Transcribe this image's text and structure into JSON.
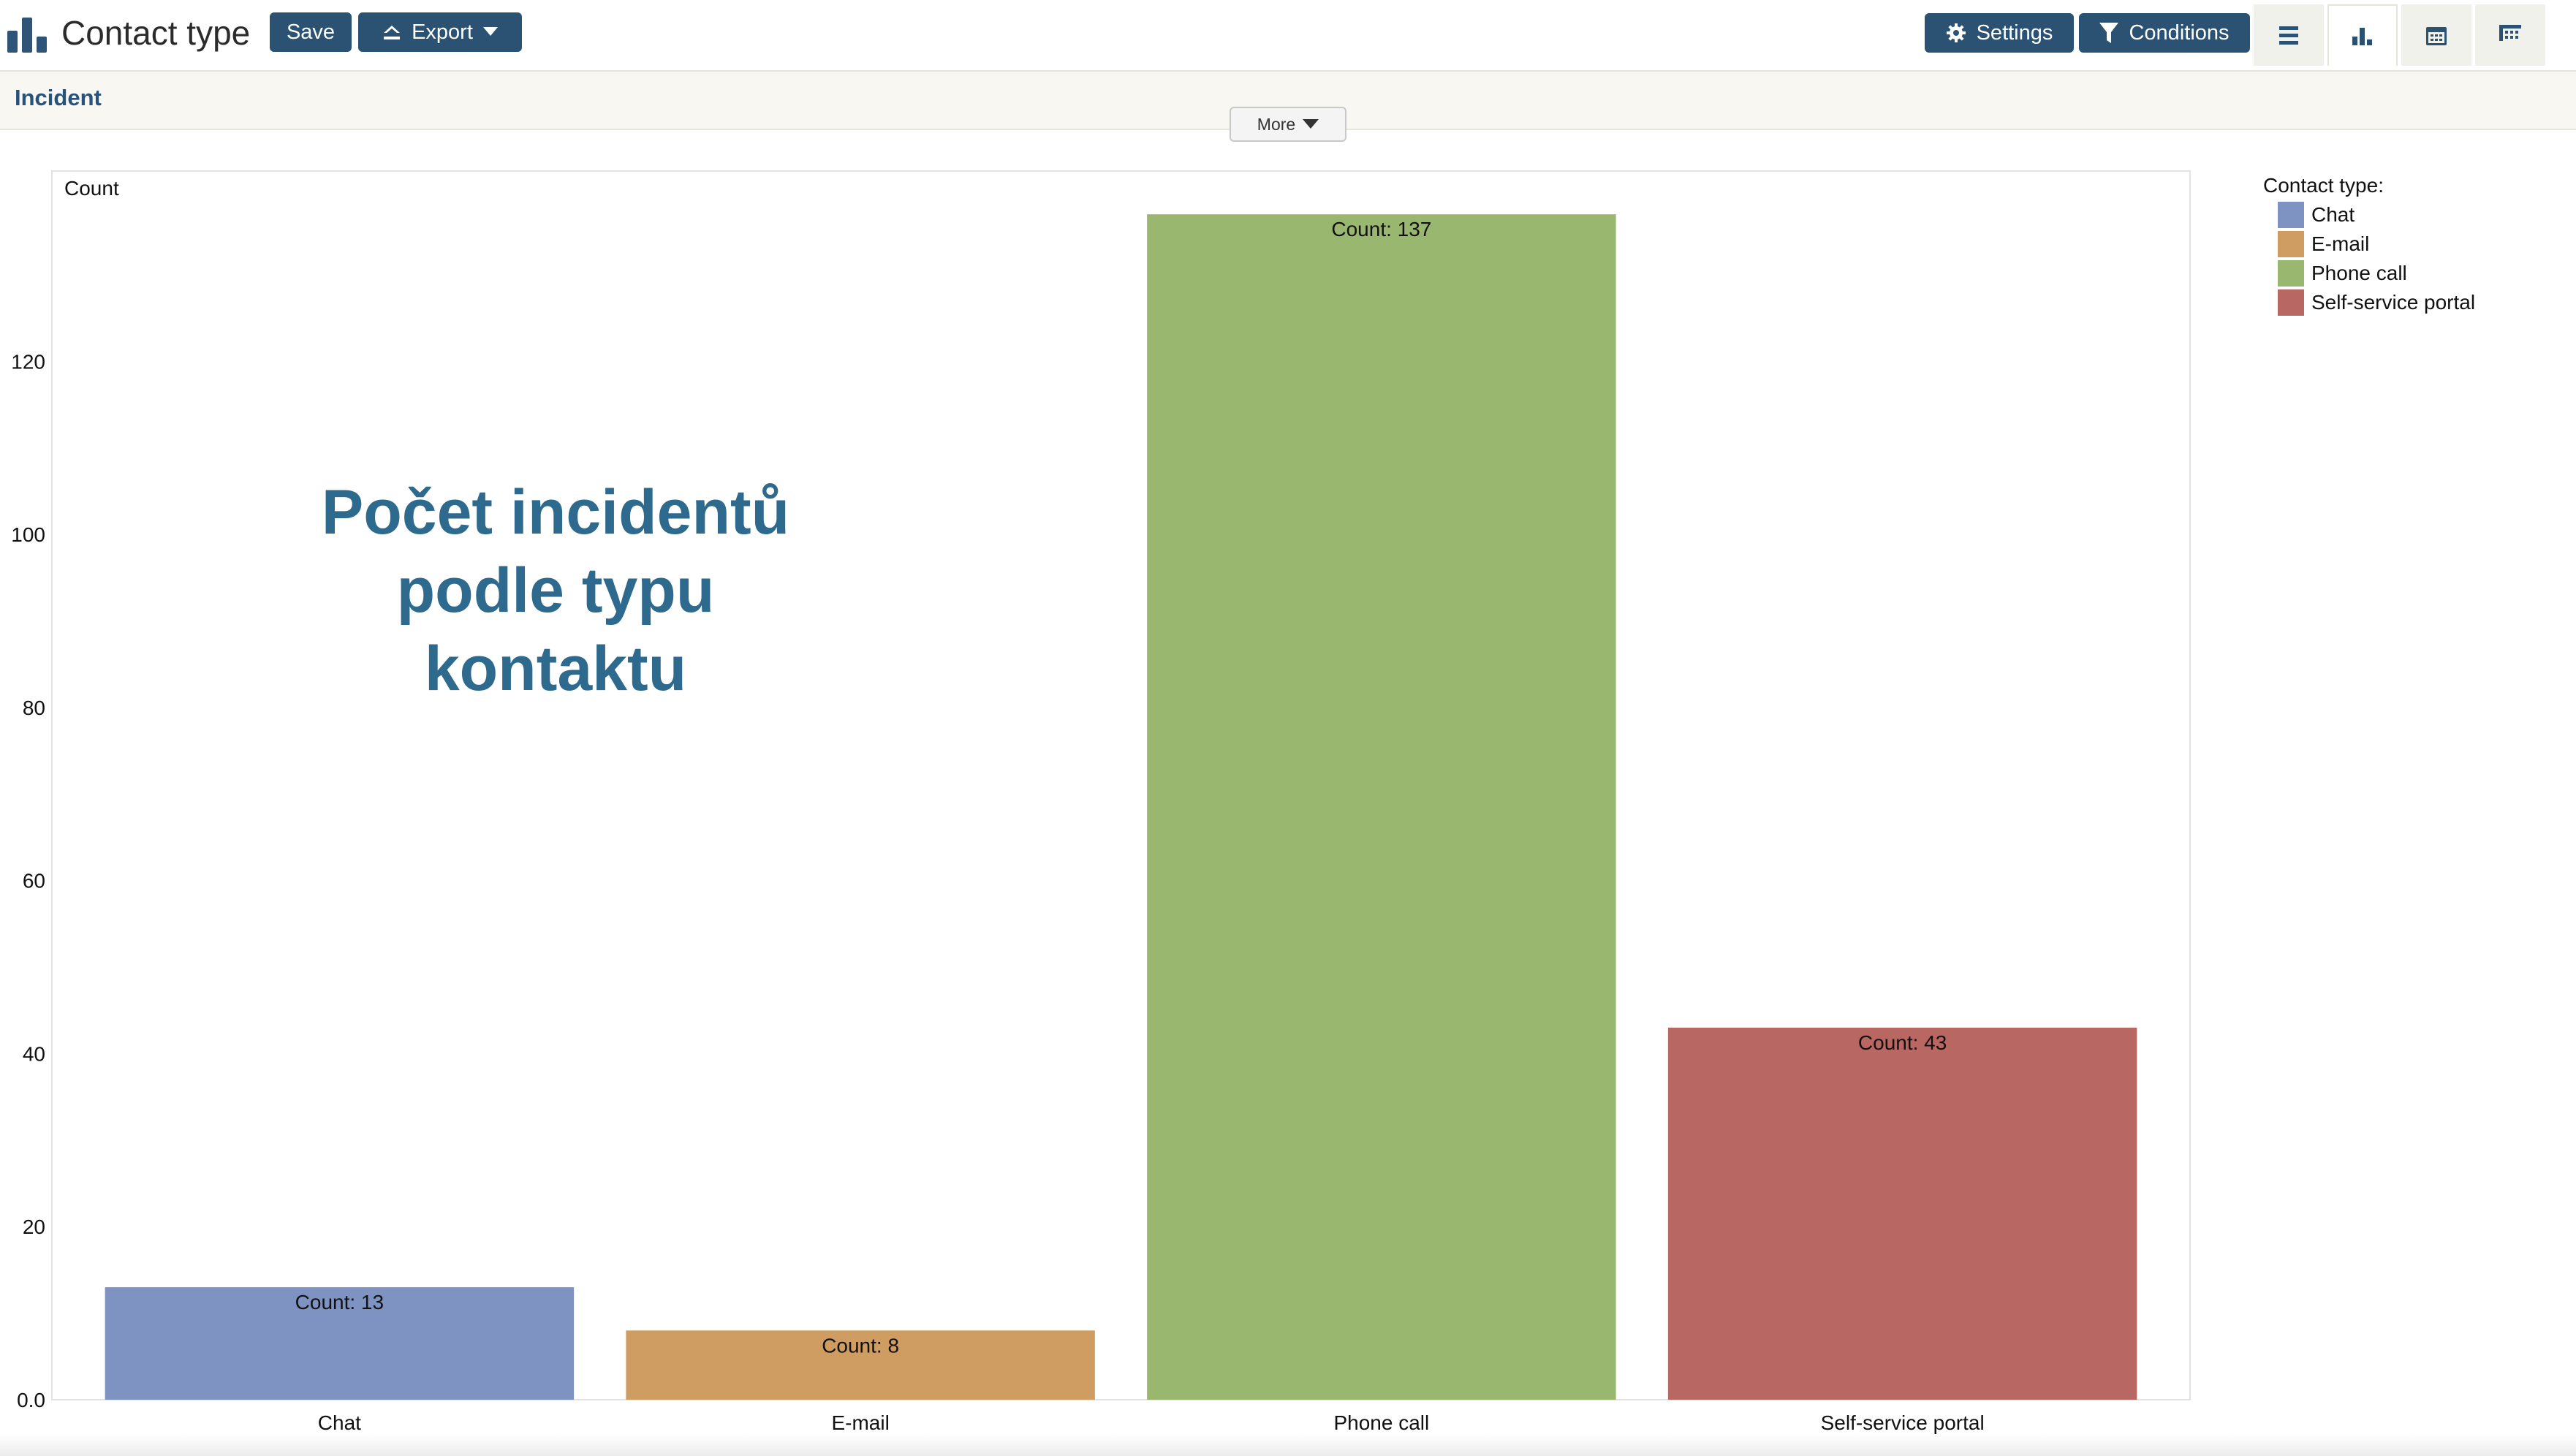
{
  "toolbar": {
    "title": "Contact type",
    "save_label": "Save",
    "export_label": "Export",
    "settings_label": "Settings",
    "conditions_label": "Conditions",
    "view_tabs": [
      "list-view-icon",
      "bar-chart-icon",
      "calendar-icon",
      "pivot-icon"
    ]
  },
  "subheader": {
    "table_name": "Incident",
    "more_label": "More"
  },
  "overlay_text": [
    "Počet incidentů",
    "podle typu",
    "kontaktu"
  ],
  "legend": {
    "title": "Contact type:",
    "items": [
      {
        "label": "Chat",
        "color": "#7f93c2"
      },
      {
        "label": "E-mail",
        "color": "#cf9c62"
      },
      {
        "label": "Phone call",
        "color": "#9ab76f"
      },
      {
        "label": "Self-service portal",
        "color": "#b96762"
      }
    ]
  },
  "chart_data": {
    "type": "bar",
    "title": "",
    "xlabel": "",
    "ylabel": "Count",
    "categories": [
      "Chat",
      "E-mail",
      "Phone call",
      "Self-service portal"
    ],
    "values": [
      13,
      8,
      137,
      43
    ],
    "data_labels": [
      "Count: 13",
      "Count: 8",
      "Count: 137",
      "Count: 43"
    ],
    "colors": [
      "#7f93c2",
      "#cf9c62",
      "#9ab76f",
      "#b96762"
    ],
    "ylim": [
      0,
      142
    ],
    "yticks": [
      0,
      20,
      40,
      60,
      80,
      100,
      120
    ],
    "ytick_labels": [
      "0.0",
      "20",
      "40",
      "60",
      "80",
      "100",
      "120"
    ],
    "grid": false,
    "legend_position": "right"
  }
}
